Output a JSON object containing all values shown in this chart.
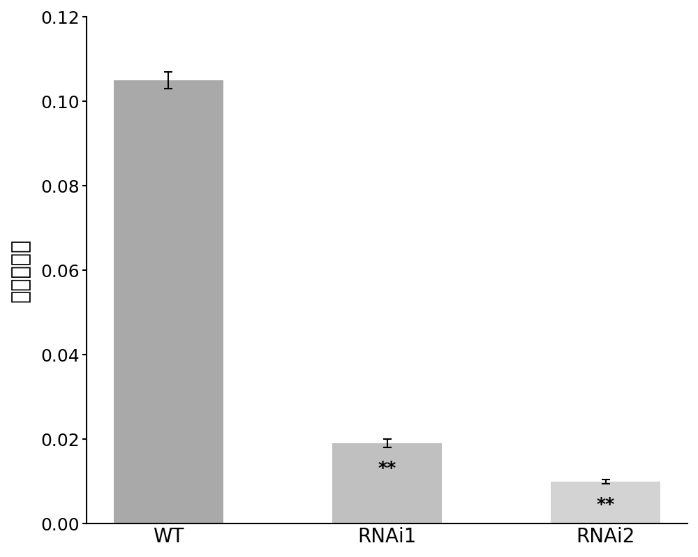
{
  "categories": [
    "WT",
    "RNAi1",
    "RNAi2"
  ],
  "values": [
    0.105,
    0.019,
    0.01
  ],
  "errors": [
    0.002,
    0.001,
    0.0005
  ],
  "bar_colors": [
    "#a9a9a9",
    "#c0c0c0",
    "#d3d3d3"
  ],
  "significance": [
    "",
    "**",
    "**"
  ],
  "ylabel": "相对表达量",
  "ylim": [
    0.0,
    0.12
  ],
  "yticks": [
    0.0,
    0.02,
    0.04,
    0.06,
    0.08,
    0.1,
    0.12
  ],
  "background_color": "#ffffff",
  "bar_width": 0.5,
  "sig_fontsize": 18,
  "ylabel_fontsize": 22,
  "tick_fontsize": 18,
  "xlabel_fontsize": 20
}
